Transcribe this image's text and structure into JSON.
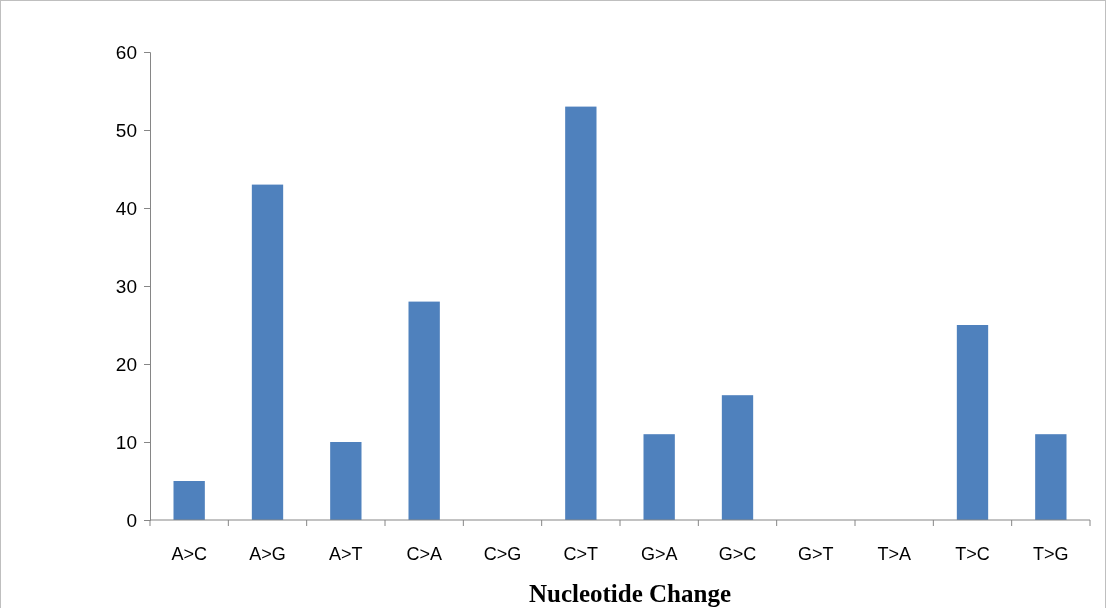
{
  "chart_data": {
    "type": "bar",
    "xlabel": "Nucleotide Change",
    "categories": [
      "A>C",
      "A>G",
      "A>T",
      "C>A",
      "C>G",
      "C>T",
      "G>A",
      "G>C",
      "G>T",
      "T>A",
      "T>C",
      "T>G"
    ],
    "values": [
      5,
      43,
      10,
      28,
      0,
      53,
      11,
      16,
      0,
      0,
      25,
      11
    ],
    "color": "#4f81bd",
    "ylim": [
      0,
      60
    ],
    "yticks": [
      0,
      10,
      20,
      30,
      40,
      50,
      60
    ],
    "grid": false
  }
}
